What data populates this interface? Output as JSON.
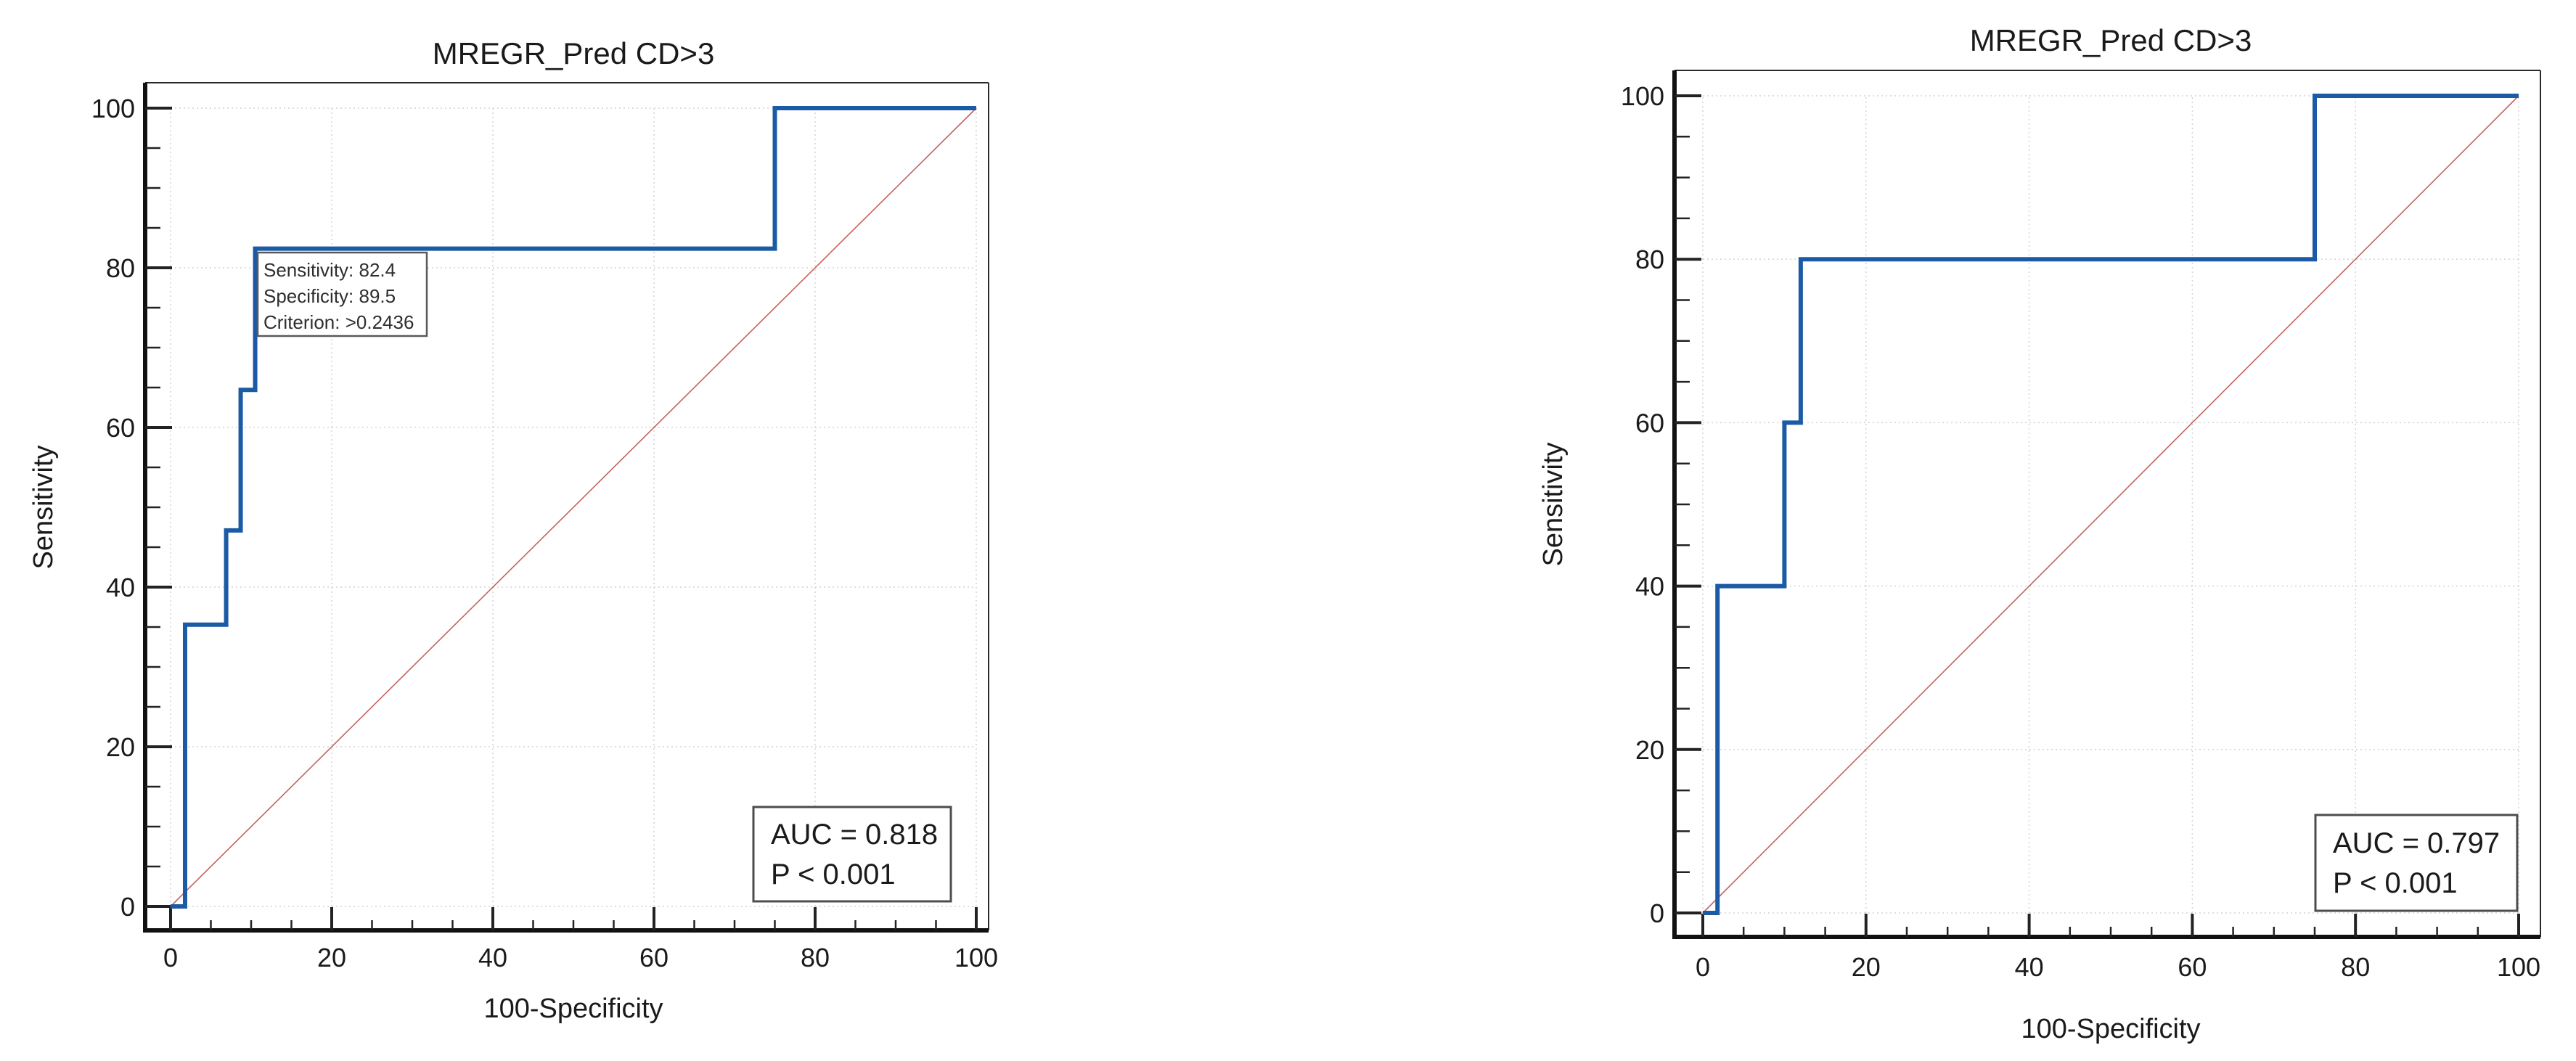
{
  "figure": {
    "background_color": "#ffffff",
    "curve_color": "#1b5aa5",
    "diagonal_color": "#c46262",
    "grid_color": "#d4d4d4",
    "axis_color": "#111111",
    "text_color": "#1a1a1a"
  },
  "chart_data": [
    {
      "type": "line",
      "title": "MREGR_Pred CD>3",
      "xlabel": "100-Specificity",
      "ylabel": "Sensitivity",
      "xlim": [
        0,
        100
      ],
      "ylim": [
        0,
        100
      ],
      "grid": true,
      "x_major_ticks": [
        0,
        20,
        40,
        60,
        80,
        100
      ],
      "y_major_ticks": [
        0,
        20,
        40,
        60,
        80,
        100
      ],
      "x_tick_labels": [
        "0",
        "20",
        "40",
        "60",
        "80",
        "100"
      ],
      "y_tick_labels": [
        "0",
        "20",
        "40",
        "60",
        "80",
        "100"
      ],
      "minor_tick_step": 5,
      "series": [
        {
          "name": "ROC curve",
          "color": "#1b5aa5",
          "points": [
            [
              0,
              0
            ],
            [
              1.8,
              0
            ],
            [
              1.8,
              35.3
            ],
            [
              6.9,
              35.3
            ],
            [
              6.9,
              47.1
            ],
            [
              8.7,
              47.1
            ],
            [
              8.7,
              64.7
            ],
            [
              10.5,
              64.7
            ],
            [
              10.5,
              82.4
            ],
            [
              75,
              82.4
            ],
            [
              75,
              100
            ],
            [
              100,
              100
            ]
          ]
        },
        {
          "name": "reference diagonal",
          "color": "#c46262",
          "points": [
            [
              0,
              0
            ],
            [
              100,
              100
            ]
          ]
        }
      ],
      "operating_point": {
        "sensitivity": 82.4,
        "specificity": 89.5,
        "criterion": ">0.2436"
      },
      "tooltip_line1": "Sensitivity: 82.4",
      "tooltip_line2": "Specificity: 89.5",
      "tooltip_line3": "Criterion: >0.2436",
      "auc_label": "AUC = 0.818",
      "p_label": "P < 0.001"
    },
    {
      "type": "line",
      "title": "MREGR_Pred CD>3",
      "xlabel": "100-Specificity",
      "ylabel": "Sensitivity",
      "xlim": [
        0,
        100
      ],
      "ylim": [
        0,
        100
      ],
      "grid": true,
      "x_major_ticks": [
        0,
        20,
        40,
        60,
        80,
        100
      ],
      "y_major_ticks": [
        0,
        20,
        40,
        60,
        80,
        100
      ],
      "x_tick_labels": [
        "0",
        "20",
        "40",
        "60",
        "80",
        "100"
      ],
      "y_tick_labels": [
        "0",
        "20",
        "40",
        "60",
        "80",
        "100"
      ],
      "minor_tick_step": 5,
      "series": [
        {
          "name": "ROC curve",
          "color": "#1b5aa5",
          "points": [
            [
              0,
              0
            ],
            [
              1.8,
              0
            ],
            [
              1.8,
              40
            ],
            [
              10,
              40
            ],
            [
              10,
              60
            ],
            [
              12,
              60
            ],
            [
              12,
              80
            ],
            [
              75,
              80
            ],
            [
              75,
              100
            ],
            [
              100,
              100
            ]
          ]
        },
        {
          "name": "reference diagonal",
          "color": "#c46262",
          "points": [
            [
              0,
              0
            ],
            [
              100,
              100
            ]
          ]
        }
      ],
      "auc_label": "AUC = 0.797",
      "p_label": "P < 0.001"
    }
  ]
}
